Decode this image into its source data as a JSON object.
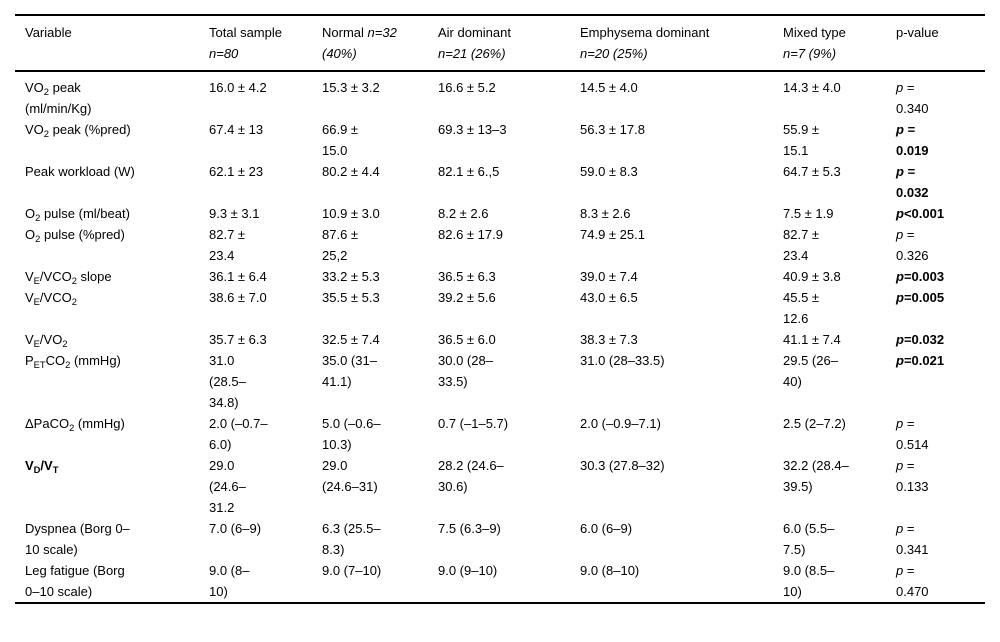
{
  "colors": {
    "background": "#ffffff",
    "text": "#000000",
    "rule": "#000000"
  },
  "table": {
    "columns": [
      {
        "key": "variable",
        "label": "Variable"
      },
      {
        "key": "total",
        "label": "Total sample\n*n=80*"
      },
      {
        "key": "normal",
        "label": "Normal *n=32*\n*(40%)*"
      },
      {
        "key": "air",
        "label": "Air dominant\n*n=21 (26%)*"
      },
      {
        "key": "emphysema",
        "label": "Emphysema dominant\n*n=20 (25%)*"
      },
      {
        "key": "mixed",
        "label": "Mixed type\n*n=7 (9%)*"
      },
      {
        "key": "p",
        "label": "p-value"
      }
    ],
    "rows": [
      {
        "variable": "VO~2~ peak\n(ml/min/Kg)",
        "variable_bold": false,
        "total": "16.0 ± 4.2",
        "normal": "15.3 ± 3.2",
        "air": "16.6 ± 5.2",
        "emphysema": "14.5 ± 4.0",
        "mixed": "14.3 ± 4.0",
        "p": "*p* =\n0.340",
        "p_bold": false
      },
      {
        "variable": "VO~2~ peak (%pred)",
        "variable_bold": false,
        "total": "67.4 ± 13",
        "normal": "66.9 ±\n15.0",
        "air": "69.3 ± 13–3",
        "emphysema": "56.3 ± 17.8",
        "mixed": "55.9 ±\n15.1",
        "p": "*p* =\n0.019",
        "p_bold": true
      },
      {
        "variable": "Peak workload (W)",
        "variable_bold": false,
        "total": "62.1 ± 23",
        "normal": "80.2 ± 4.4",
        "air": "82.1 ± 6.,5",
        "emphysema": "59.0 ± 8.3",
        "mixed": "64.7 ± 5.3",
        "p": "*p* =\n0.032",
        "p_bold": true
      },
      {
        "variable": "O~2~ pulse (ml/beat)",
        "variable_bold": false,
        "total": "9.3 ± 3.1",
        "normal": "10.9 ± 3.0",
        "air": "8.2 ± 2.6",
        "emphysema": "8.3 ± 2.6",
        "mixed": "7.5 ± 1.9",
        "p": "*p*<0.001",
        "p_bold": true
      },
      {
        "variable": "O~2~ pulse (%pred)",
        "variable_bold": false,
        "total": "82.7 ±\n23.4",
        "normal": "87.6 ±\n25,2",
        "air": "82.6 ± 17.9",
        "emphysema": "74.9 ± 25.1",
        "mixed": "82.7 ±\n23.4",
        "p": "*p* =\n0.326",
        "p_bold": false
      },
      {
        "variable": "V~E~/VCO~2~ slope",
        "variable_bold": false,
        "total": "36.1 ± 6.4",
        "normal": "33.2 ± 5.3",
        "air": "36.5 ± 6.3",
        "emphysema": "39.0 ± 7.4",
        "mixed": "40.9 ± 3.8",
        "p": "*p*=0.003",
        "p_bold": true
      },
      {
        "variable": "V~E~/VCO~2~",
        "variable_bold": false,
        "total": "38.6 ± 7.0",
        "normal": "35.5 ± 5.3",
        "air": "39.2 ± 5.6",
        "emphysema": "43.0 ± 6.5",
        "mixed": "45.5 ±\n12.6",
        "p": "*p*=0.005",
        "p_bold": true
      },
      {
        "variable": "V~E~/VO~2~",
        "variable_bold": false,
        "total": "35.7 ± 6.3",
        "normal": "32.5 ± 7.4",
        "air": "36.5 ± 6.0",
        "emphysema": "38.3 ± 7.3",
        "mixed": "41.1 ± 7.4",
        "p": "*p*=0.032",
        "p_bold": true
      },
      {
        "variable": "P~ET~CO~2~ (mmHg)",
        "variable_bold": false,
        "total": "31.0\n(28.5–\n34.8)",
        "normal": "35.0 (31–\n41.1)",
        "air": "30.0 (28–\n33.5)",
        "emphysema": "31.0 (28–33.5)",
        "mixed": "29.5 (26–\n40)",
        "p": "*p*=0.021",
        "p_bold": true
      },
      {
        "variable": "ΔPaCO~2~ (mmHg)",
        "variable_bold": false,
        "total": "2.0 (–0.7–\n6.0)",
        "normal": "5.0 (–0.6–\n10.3)",
        "air": "0.7 (–1–5.7)",
        "emphysema": "2.0 (–0.9–7.1)",
        "mixed": "2.5 (2–7.2)",
        "p": "*p* =\n0.514",
        "p_bold": false
      },
      {
        "variable": "V~D~/V~T~",
        "variable_bold": true,
        "total": "29.0\n(24.6–\n31.2",
        "normal": "29.0\n(24.6–31)",
        "air": "28.2 (24.6–\n30.6)",
        "emphysema": "30.3 (27.8–32)",
        "mixed": "32.2 (28.4–\n39.5)",
        "p": "*p* =\n0.133",
        "p_bold": false
      },
      {
        "variable": "Dyspnea (Borg 0–\n10 scale)",
        "variable_bold": false,
        "total": "7.0 (6–9)",
        "normal": "6.3 (25.5–\n8.3)",
        "air": "7.5 (6.3–9)",
        "emphysema": "6.0 (6–9)",
        "mixed": "6.0 (5.5–\n7.5)",
        "p": "*p* =\n0.341",
        "p_bold": false
      },
      {
        "variable": "Leg fatigue (Borg\n0–10 scale)",
        "variable_bold": false,
        "total": "9.0 (8–\n10)",
        "normal": "9.0 (7–10)",
        "air": "9.0 (9–10)",
        "emphysema": "9.0 (8–10)",
        "mixed": "9.0 (8.5–\n10)",
        "p": "*p* =\n0.470",
        "p_bold": false
      }
    ]
  }
}
